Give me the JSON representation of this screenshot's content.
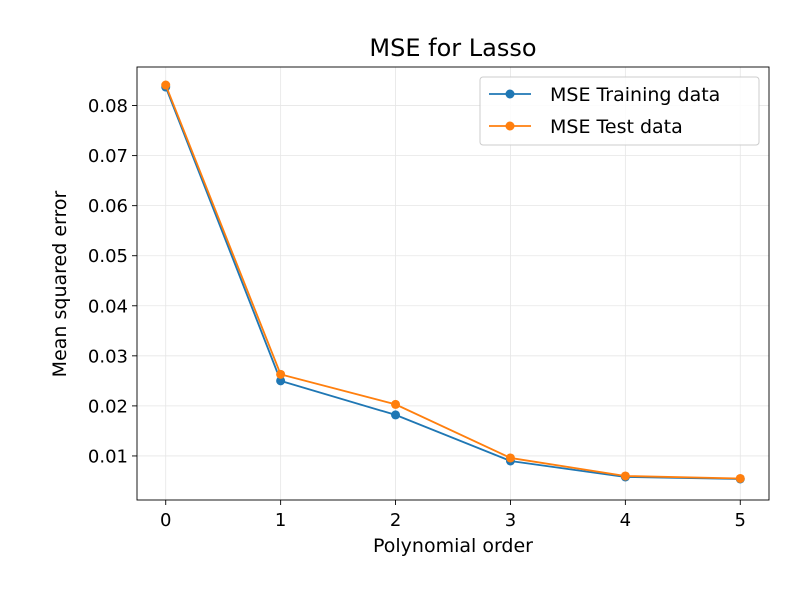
{
  "chart_data": {
    "type": "line",
    "title": "MSE for Lasso",
    "xlabel": "Polynomial order",
    "ylabel": "Mean squared error",
    "x": [
      0,
      1,
      2,
      3,
      4,
      5
    ],
    "xlim": [
      -0.25,
      5.25
    ],
    "ylim": [
      0.0012,
      0.0877
    ],
    "xticks": [
      0,
      1,
      2,
      3,
      4,
      5
    ],
    "xtick_labels": [
      "0",
      "1",
      "2",
      "3",
      "4",
      "5"
    ],
    "yticks": [
      0.01,
      0.02,
      0.03,
      0.04,
      0.05,
      0.06,
      0.07,
      0.08
    ],
    "ytick_labels": [
      "0.01",
      "0.02",
      "0.03",
      "0.04",
      "0.05",
      "0.06",
      "0.07",
      "0.08"
    ],
    "grid": true,
    "legend_position": "top-right",
    "series": [
      {
        "name": "MSE Training data",
        "color": "#1f77b4",
        "marker": "circle",
        "values": [
          0.0837,
          0.025,
          0.0182,
          0.009,
          0.0058,
          0.0054
        ]
      },
      {
        "name": "MSE Test data",
        "color": "#ff7f0e",
        "marker": "circle",
        "values": [
          0.0841,
          0.0263,
          0.0203,
          0.0096,
          0.006,
          0.0055
        ]
      }
    ]
  }
}
